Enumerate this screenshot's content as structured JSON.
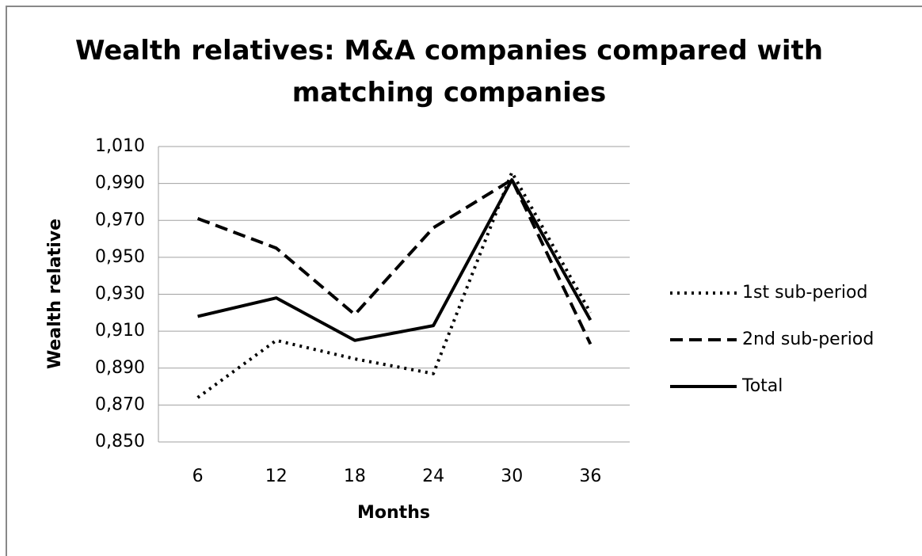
{
  "chart_data": {
    "type": "line",
    "title": "Wealth relatives: M&A companies compared with matching companies",
    "x_label": "Months",
    "y_label": "Wealth relative",
    "categories": [
      "6",
      "12",
      "18",
      "24",
      "30",
      "36"
    ],
    "series": [
      {
        "name": "1st sub-period",
        "color": "#000000",
        "line_style": "dotted",
        "values": [
          0.874,
          0.905,
          0.895,
          0.887,
          0.996,
          0.92
        ]
      },
      {
        "name": "2nd sub-period",
        "color": "#000000",
        "line_style": "dashed",
        "values": [
          0.971,
          0.955,
          0.919,
          0.966,
          0.992,
          0.903
        ]
      },
      {
        "name": "Total",
        "color": "#000000",
        "line_style": "solid",
        "values": [
          0.918,
          0.928,
          0.905,
          0.913,
          0.992,
          0.916
        ]
      }
    ],
    "ylim": [
      0.85,
      1.01
    ],
    "yticks": [
      {
        "value": 0.85,
        "label": "0,850"
      },
      {
        "value": 0.87,
        "label": "0,870"
      },
      {
        "value": 0.89,
        "label": "0,890"
      },
      {
        "value": 0.91,
        "label": "0,910"
      },
      {
        "value": 0.93,
        "label": "0,930"
      },
      {
        "value": 0.95,
        "label": "0,950"
      },
      {
        "value": 0.97,
        "label": "0,970"
      },
      {
        "value": 0.99,
        "label": "0,990"
      },
      {
        "value": 1.01,
        "label": "1,010"
      }
    ],
    "grid": true,
    "legend": "right"
  }
}
